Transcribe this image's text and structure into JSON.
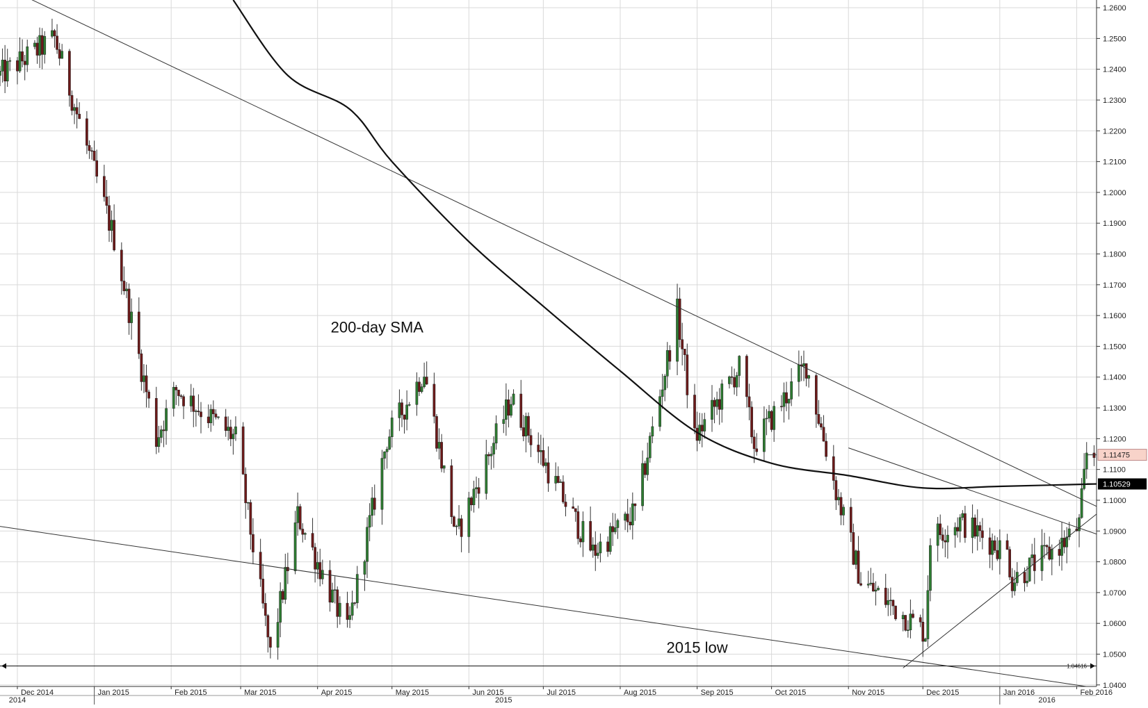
{
  "chart_data": {
    "type": "candlestick",
    "instrument": "",
    "y_axis_position": "right",
    "ylim": [
      1.0395,
      1.2625
    ],
    "y_ticks": [
      "1.2600",
      "1.2500",
      "1.2400",
      "1.2300",
      "1.2200",
      "1.2100",
      "1.2000",
      "1.1900",
      "1.1800",
      "1.1700",
      "1.1600",
      "1.1500",
      "1.1400",
      "1.1300",
      "1.1200",
      "1.1100",
      "1.1000",
      "1.0900",
      "1.0800",
      "1.0700",
      "1.0600",
      "1.0500",
      "1.0400"
    ],
    "x_range": [
      "2014-11-24",
      "2016-02-09"
    ],
    "x_months": [
      {
        "label": "Dec 2014",
        "date": "2014-12-01"
      },
      {
        "label": "Jan 2015",
        "date": "2015-01-01"
      },
      {
        "label": "Feb 2015",
        "date": "2015-02-01"
      },
      {
        "label": "Mar 2015",
        "date": "2015-03-01"
      },
      {
        "label": "Apr 2015",
        "date": "2015-04-01"
      },
      {
        "label": "May 2015",
        "date": "2015-05-01"
      },
      {
        "label": "Jun 2015",
        "date": "2015-06-01"
      },
      {
        "label": "Jul 2015",
        "date": "2015-07-01"
      },
      {
        "label": "Aug 2015",
        "date": "2015-08-01"
      },
      {
        "label": "Sep 2015",
        "date": "2015-09-01"
      },
      {
        "label": "Oct 2015",
        "date": "2015-10-01"
      },
      {
        "label": "Nov 2015",
        "date": "2015-11-01"
      },
      {
        "label": "Dec 2015",
        "date": "2015-12-01"
      },
      {
        "label": "Jan 2016",
        "date": "2016-01-01"
      },
      {
        "label": "Feb 2016",
        "date": "2016-02-01"
      }
    ],
    "x_years": [
      {
        "label": "2014",
        "date": "2014-12-01"
      },
      {
        "label": "2015",
        "date": "2015-06-15"
      },
      {
        "label": "2016",
        "date": "2016-01-20"
      }
    ],
    "year_separators": [
      "2015-01-01",
      "2016-01-01"
    ],
    "grid": true,
    "up_color": "#2e7d32",
    "down_color": "#6d1a1a",
    "anchors": [
      {
        "date": "2014-11-24",
        "price": 1.238
      },
      {
        "date": "2014-12-16",
        "price": 1.25
      },
      {
        "date": "2015-01-09",
        "price": 1.185
      },
      {
        "date": "2015-01-26",
        "price": 1.12
      },
      {
        "date": "2015-02-03",
        "price": 1.136
      },
      {
        "date": "2015-02-27",
        "price": 1.12
      },
      {
        "date": "2015-03-13",
        "price": 1.05
      },
      {
        "date": "2015-03-24",
        "price": 1.095
      },
      {
        "date": "2015-04-13",
        "price": 1.057
      },
      {
        "date": "2015-04-29",
        "price": 1.12
      },
      {
        "date": "2015-05-14",
        "price": 1.142
      },
      {
        "date": "2015-05-27",
        "price": 1.088
      },
      {
        "date": "2015-06-18",
        "price": 1.133
      },
      {
        "date": "2015-07-08",
        "price": 1.102
      },
      {
        "date": "2015-07-21",
        "price": 1.083
      },
      {
        "date": "2015-08-07",
        "price": 1.096
      },
      {
        "date": "2015-08-24",
        "price": 1.161
      },
      {
        "date": "2015-08-31",
        "price": 1.12
      },
      {
        "date": "2015-09-18",
        "price": 1.143
      },
      {
        "date": "2015-09-24",
        "price": 1.118
      },
      {
        "date": "2015-10-15",
        "price": 1.144
      },
      {
        "date": "2015-10-27",
        "price": 1.103
      },
      {
        "date": "2015-11-06",
        "price": 1.074
      },
      {
        "date": "2015-12-02",
        "price": 1.057
      },
      {
        "date": "2015-12-04",
        "price": 1.088
      },
      {
        "date": "2015-12-16",
        "price": 1.093
      },
      {
        "date": "2016-01-04",
        "price": 1.083
      },
      {
        "date": "2016-01-06",
        "price": 1.074
      },
      {
        "date": "2016-01-28",
        "price": 1.087
      },
      {
        "date": "2016-02-02",
        "price": 1.092
      },
      {
        "date": "2016-02-05",
        "price": 1.115
      }
    ],
    "sma200": {
      "label": "200-day SMA",
      "last_value": "1.10529",
      "points": [
        {
          "date": "2015-02-26",
          "price": 1.2625
        },
        {
          "date": "2015-03-20",
          "price": 1.238
        },
        {
          "date": "2015-04-14",
          "price": 1.227
        },
        {
          "date": "2015-05-01",
          "price": 1.21
        },
        {
          "date": "2015-06-01",
          "price": 1.184
        },
        {
          "date": "2015-07-01",
          "price": 1.163
        },
        {
          "date": "2015-08-01",
          "price": 1.142
        },
        {
          "date": "2015-09-01",
          "price": 1.122
        },
        {
          "date": "2015-10-01",
          "price": 1.112
        },
        {
          "date": "2015-11-01",
          "price": 1.108
        },
        {
          "date": "2015-12-01",
          "price": 1.104
        },
        {
          "date": "2016-01-01",
          "price": 1.1045
        },
        {
          "date": "2016-02-09",
          "price": 1.1053
        }
      ]
    },
    "last_price": "1.11475",
    "trendlines": [
      {
        "from": {
          "date": "2014-11-24",
          "price": 1.2675
        },
        "to": {
          "date": "2016-02-09",
          "price": 1.098
        }
      },
      {
        "from": {
          "date": "2014-11-24",
          "price": 1.0915
        },
        "to": {
          "date": "2016-02-09",
          "price": 1.039
        }
      },
      {
        "from": {
          "date": "2015-11-01",
          "price": 1.117
        },
        "to": {
          "date": "2016-02-09",
          "price": 1.089
        }
      },
      {
        "from": {
          "date": "2015-11-23",
          "price": 1.0455
        },
        "to": {
          "date": "2016-02-09",
          "price": 1.0955
        }
      }
    ],
    "low_line": {
      "price": 1.04616,
      "label": "1.04616",
      "from": "2014-11-24",
      "to": "2016-02-09"
    },
    "annotations": [
      {
        "text": "200-day SMA",
        "date": "2015-04-25",
        "price": 1.1545
      },
      {
        "text": "2015 low",
        "date": "2015-09-01",
        "price": 1.0504
      }
    ]
  }
}
